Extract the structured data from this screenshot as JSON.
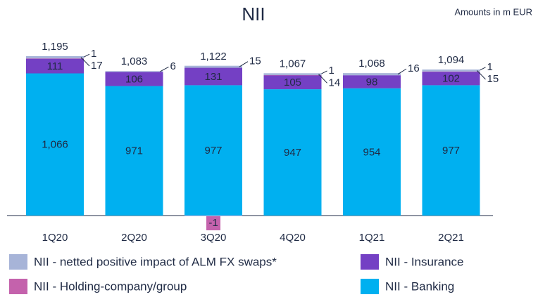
{
  "chart_data": {
    "type": "bar",
    "stacked": true,
    "title": "NII",
    "subtitle": "Amounts in m EUR",
    "categories": [
      "1Q20",
      "2Q20",
      "3Q20",
      "4Q20",
      "1Q21",
      "2Q21"
    ],
    "series": [
      {
        "name": "NII - netted positive impact of ALM FX swaps*",
        "color": "#a7b4d8",
        "values": [
          17,
          6,
          15,
          14,
          16,
          15
        ]
      },
      {
        "name": "NII - Insurance",
        "color": "#7440c4",
        "values": [
          111,
          106,
          131,
          105,
          98,
          102
        ]
      },
      {
        "name": "NII - Holding-company/group",
        "color": "#c462ac",
        "values": [
          1,
          null,
          -1,
          1,
          null,
          1
        ]
      },
      {
        "name": "NII - Banking",
        "color": "#00b0f0",
        "values": [
          1066,
          971,
          977,
          947,
          954,
          977
        ],
        "value_labels": [
          "1,066",
          "971",
          "977",
          "947",
          "954",
          "977"
        ]
      }
    ],
    "totals": [
      1195,
      1083,
      1122,
      1067,
      1068,
      1094
    ],
    "totals_labels": [
      "1,195",
      "1,083",
      "1,122",
      "1,067",
      "1,068",
      "1,094"
    ]
  }
}
